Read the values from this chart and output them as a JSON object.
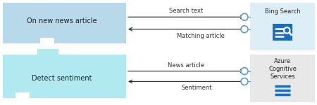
{
  "fig_width": 4.5,
  "fig_height": 1.5,
  "dpi": 100,
  "bg_color": "#ffffff",
  "top_trigger_label": "On new news article",
  "top_trigger_box_color": "#b8d9ea",
  "top_service_label": "Bing Search",
  "top_service_bg": "#ddeef7",
  "top_arrow1_label": "Search text",
  "top_arrow2_label": "Matching article",
  "bottom_trigger_label": "Detect sentiment",
  "bottom_trigger_box_color": "#b0eaf0",
  "bottom_service_label": "Azure\nCognitive\nServices",
  "bottom_service_bg": "#e8e8e8",
  "bottom_arrow1_label": "News article",
  "bottom_arrow2_label": "Sentiment",
  "arrow_color": "#333333",
  "circle_color": "#5b9bd5",
  "icon_color_bing": "#1a6dbd",
  "icon_color_azure": "#1a6dbd",
  "label_fontsize": 6.0,
  "service_fontsize": 6.0,
  "trigger_fontsize": 7.0
}
